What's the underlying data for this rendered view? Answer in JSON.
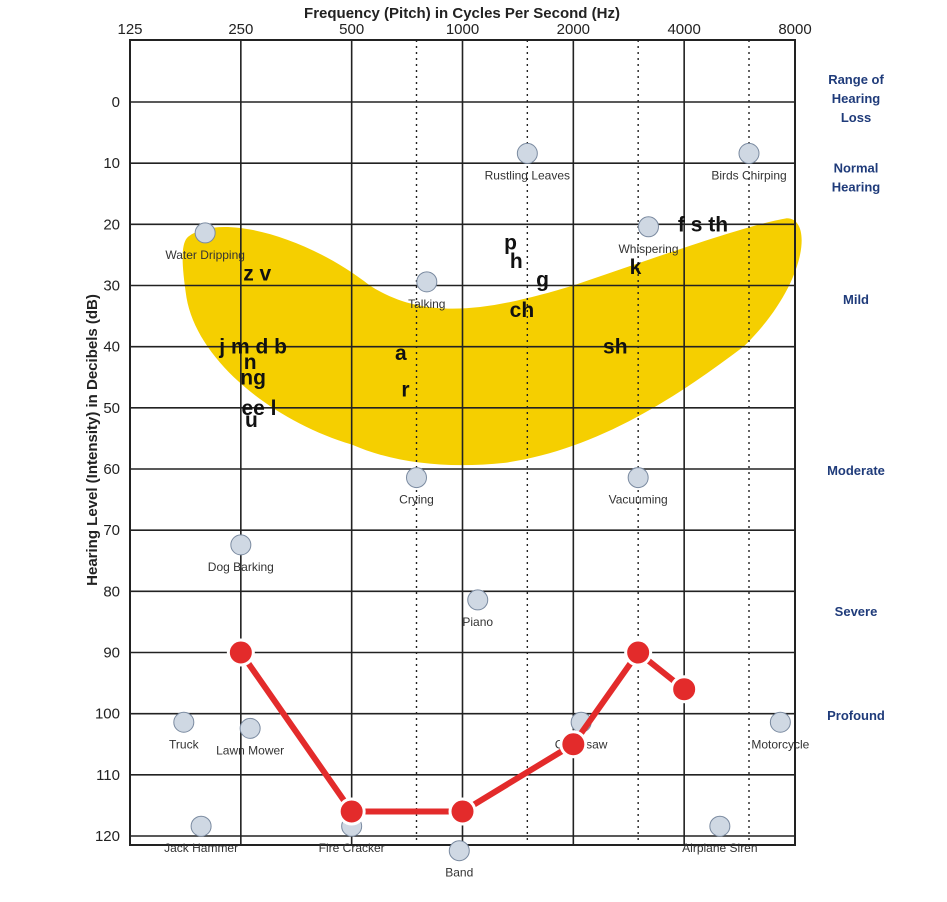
{
  "chart_data": {
    "type": "scatter",
    "title": "Frequency (Pitch) in Cycles Per Second (Hz)",
    "xlabel": "Frequency (Pitch) in Cycles Per Second (Hz)",
    "ylabel": "Hearing Level (Intensity) in Decibels (dB)",
    "x_scale": "log2",
    "x_ticks": [
      125,
      250,
      500,
      1000,
      2000,
      4000,
      8000
    ],
    "x_tick_labels": [
      "125",
      "250",
      "500",
      "1000",
      "2000",
      "4000",
      "8000"
    ],
    "x_dotted_lines": [
      750,
      1500,
      3000,
      6000
    ],
    "ylim": [
      -5,
      121
    ],
    "y_inverted": true,
    "y_ticks": [
      0,
      10,
      20,
      30,
      40,
      50,
      60,
      70,
      80,
      90,
      100,
      110,
      120
    ],
    "y_tick_labels": [
      "0",
      "10",
      "20",
      "30",
      "40",
      "50",
      "60",
      "70",
      "80",
      "90",
      "100",
      "110",
      "120"
    ],
    "grid": true,
    "audiogram": {
      "color": "#e32b2b",
      "points": [
        {
          "x": 250,
          "y": 90
        },
        {
          "x": 500,
          "y": 116
        },
        {
          "x": 1000,
          "y": 116
        },
        {
          "x": 2000,
          "y": 105
        },
        {
          "x": 3000,
          "y": 90
        },
        {
          "x": 4000,
          "y": 96
        }
      ]
    },
    "speech_banana": {
      "color": "#f5cf00",
      "phonemes": [
        {
          "text": "z v",
          "x": 277,
          "y": 28
        },
        {
          "text": "j m d b",
          "x": 270,
          "y": 40
        },
        {
          "text": "n",
          "x": 265,
          "y": 42.5
        },
        {
          "text": "ng",
          "x": 270,
          "y": 45
        },
        {
          "text": "ee l",
          "x": 280,
          "y": 50
        },
        {
          "text": "u",
          "x": 267,
          "y": 52
        },
        {
          "text": "a",
          "x": 680,
          "y": 41
        },
        {
          "text": "r",
          "x": 700,
          "y": 47
        },
        {
          "text": "p",
          "x": 1350,
          "y": 23
        },
        {
          "text": "h",
          "x": 1400,
          "y": 26
        },
        {
          "text": "g",
          "x": 1650,
          "y": 29
        },
        {
          "text": "ch",
          "x": 1450,
          "y": 34
        },
        {
          "text": "sh",
          "x": 2600,
          "y": 40
        },
        {
          "text": "k",
          "x": 2950,
          "y": 27
        },
        {
          "text": "f s th",
          "x": 4500,
          "y": 20
        }
      ]
    },
    "sound_labels": [
      {
        "text": "Rustling Leaves",
        "x": 1500,
        "y": 12
      },
      {
        "text": "Birds Chirping",
        "x": 6000,
        "y": 12
      },
      {
        "text": "Water Dripping",
        "x": 200,
        "y": 25
      },
      {
        "text": "Whispering",
        "x": 3200,
        "y": 24
      },
      {
        "text": "Talking",
        "x": 800,
        "y": 33
      },
      {
        "text": "Crying",
        "x": 750,
        "y": 65
      },
      {
        "text": "Vacuuming",
        "x": 3000,
        "y": 65
      },
      {
        "text": "Dog Barking",
        "x": 250,
        "y": 76
      },
      {
        "text": "Piano",
        "x": 1100,
        "y": 85
      },
      {
        "text": "Truck",
        "x": 175,
        "y": 105
      },
      {
        "text": "Lawn Mower",
        "x": 265,
        "y": 106
      },
      {
        "text": "Chainsaw",
        "x": 2100,
        "y": 105
      },
      {
        "text": "Motorcycle",
        "x": 7300,
        "y": 105
      },
      {
        "text": "Jack Hammer",
        "x": 195,
        "y": 122
      },
      {
        "text": "Fire Cracker",
        "x": 500,
        "y": 122
      },
      {
        "text": "Band",
        "x": 980,
        "y": 126
      },
      {
        "text": "Airplane Siren",
        "x": 5000,
        "y": 122
      }
    ],
    "hearing_categories": [
      {
        "text": "Range of Hearing Loss",
        "y": 0
      },
      {
        "text": "Normal Hearing",
        "y": 13
      },
      {
        "text": "Mild",
        "y": 33
      },
      {
        "text": "Moderate",
        "y": 61
      },
      {
        "text": "Severe",
        "y": 84
      },
      {
        "text": "Profound",
        "y": 101
      }
    ]
  }
}
